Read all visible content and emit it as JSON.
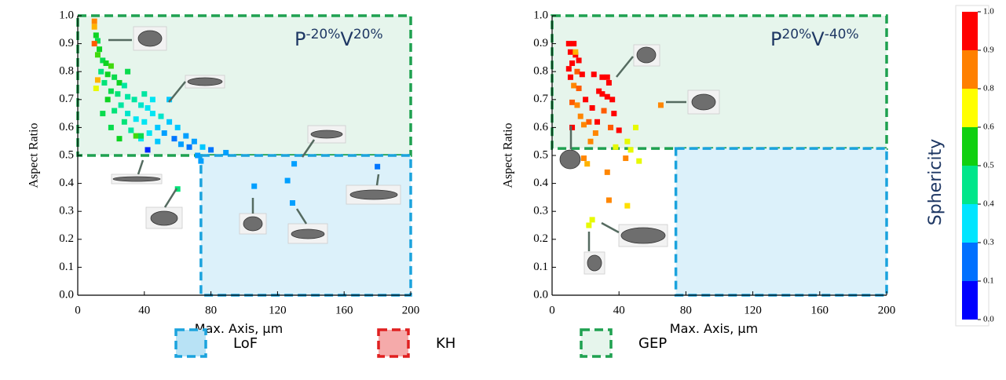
{
  "chart_data": [
    {
      "type": "scatter",
      "xlabel": "Max. Axis, µm",
      "ylabel": "Aspect Ratio",
      "annotation": [
        "P",
        "-20%",
        "V",
        "20%"
      ],
      "xlim": [
        0,
        200
      ],
      "ylim": [
        0,
        1
      ],
      "xticks": [
        0,
        40,
        80,
        120,
        160,
        200
      ],
      "yticks": [
        {
          "value": 0,
          "label": "0.0"
        },
        0.1,
        0.2,
        0.3,
        0.4,
        0.5,
        0.6,
        0.7,
        0.8,
        0.9,
        {
          "value": 1,
          "label": "1.0"
        }
      ],
      "regions": [
        {
          "xlim": [
            0,
            200
          ],
          "ylim": [
            0.5,
            1
          ],
          "fill": "#e6f5ec",
          "stroke": "#1fa150"
        },
        {
          "xlim": [
            74,
            200
          ],
          "ylim": [
            0,
            0.5
          ],
          "fill": "#dcf1fa",
          "stroke": "#1ba3dd"
        }
      ],
      "x": [
        10,
        10,
        11,
        12,
        10,
        13,
        12,
        15,
        17,
        20,
        14,
        18,
        22,
        12,
        16,
        25,
        28,
        11,
        20,
        24,
        30,
        34,
        18,
        26,
        38,
        42,
        22,
        30,
        45,
        50,
        15,
        35,
        40,
        55,
        28,
        48,
        60,
        20,
        32,
        43,
        52,
        65,
        25,
        38,
        58,
        70,
        48,
        62,
        67,
        75,
        42,
        80,
        89,
        72,
        74,
        60,
        106,
        126,
        130,
        129,
        180,
        35,
        30,
        45,
        55,
        40,
        38
      ],
      "y": [
        0.98,
        0.96,
        0.93,
        0.91,
        0.9,
        0.88,
        0.86,
        0.84,
        0.83,
        0.82,
        0.8,
        0.79,
        0.78,
        0.77,
        0.76,
        0.76,
        0.75,
        0.74,
        0.73,
        0.72,
        0.71,
        0.7,
        0.7,
        0.68,
        0.68,
        0.67,
        0.66,
        0.65,
        0.65,
        0.64,
        0.65,
        0.63,
        0.62,
        0.62,
        0.62,
        0.6,
        0.6,
        0.6,
        0.59,
        0.58,
        0.58,
        0.57,
        0.56,
        0.56,
        0.56,
        0.55,
        0.55,
        0.54,
        0.53,
        0.53,
        0.52,
        0.52,
        0.51,
        0.5,
        0.48,
        0.38,
        0.39,
        0.41,
        0.47,
        0.33,
        0.46,
        0.57,
        0.8,
        0.7,
        0.7,
        0.72,
        0.57
      ],
      "sphericity": [
        0.85,
        0.8,
        0.55,
        0.5,
        0.9,
        0.55,
        0.6,
        0.5,
        0.55,
        0.6,
        0.45,
        0.55,
        0.5,
        0.8,
        0.45,
        0.55,
        0.4,
        0.7,
        0.5,
        0.45,
        0.4,
        0.4,
        0.55,
        0.4,
        0.35,
        0.3,
        0.45,
        0.35,
        0.3,
        0.35,
        0.5,
        0.3,
        0.3,
        0.25,
        0.45,
        0.25,
        0.25,
        0.5,
        0.4,
        0.3,
        0.2,
        0.2,
        0.55,
        0.3,
        0.15,
        0.2,
        0.25,
        0.2,
        0.15,
        0.25,
        0.05,
        0.15,
        0.2,
        0.2,
        0.2,
        0.45,
        0.2,
        0.2,
        0.2,
        0.2,
        0.15,
        0.6,
        0.5,
        0.3,
        0.25,
        0.4,
        0.5
      ]
    },
    {
      "type": "scatter",
      "xlabel": "Max. Axis, µm",
      "ylabel": "Aspect Ratio",
      "annotation": [
        "P",
        "20%",
        "V",
        "-40%"
      ],
      "xlim": [
        0,
        200
      ],
      "ylim": [
        0,
        1
      ],
      "xticks": [
        0,
        40,
        80,
        120,
        160,
        200
      ],
      "yticks": [
        {
          "value": 0,
          "label": "0.0"
        },
        0.1,
        0.2,
        0.3,
        0.4,
        0.5,
        0.6,
        0.7,
        0.8,
        0.9,
        {
          "value": 1,
          "label": "1.0"
        }
      ],
      "regions": [
        {
          "xlim": [
            0,
            200
          ],
          "ylim": [
            0.525,
            1
          ],
          "fill": "#e6f5ec",
          "stroke": "#1fa150"
        },
        {
          "xlim": [
            74,
            200
          ],
          "ylim": [
            0,
            0.525
          ],
          "fill": "#dcf1fa",
          "stroke": "#1ba3dd"
        }
      ],
      "x": [
        10,
        13,
        11,
        14,
        16,
        12,
        10,
        15,
        18,
        11,
        25,
        30,
        33,
        34,
        13,
        16,
        28,
        30,
        33,
        36,
        20,
        12,
        15,
        24,
        31,
        37,
        17,
        22,
        27,
        19,
        12,
        35,
        40,
        26,
        50,
        45,
        23,
        38,
        47,
        19,
        21,
        44,
        52,
        33,
        34,
        45,
        24,
        22,
        65,
        14
      ],
      "y": [
        0.9,
        0.9,
        0.87,
        0.86,
        0.84,
        0.83,
        0.81,
        0.8,
        0.79,
        0.78,
        0.79,
        0.78,
        0.78,
        0.76,
        0.75,
        0.74,
        0.73,
        0.72,
        0.71,
        0.7,
        0.7,
        0.69,
        0.68,
        0.67,
        0.66,
        0.65,
        0.64,
        0.62,
        0.62,
        0.61,
        0.6,
        0.6,
        0.59,
        0.58,
        0.6,
        0.55,
        0.55,
        0.53,
        0.52,
        0.49,
        0.47,
        0.49,
        0.48,
        0.44,
        0.34,
        0.32,
        0.27,
        0.25,
        0.68,
        0.87
      ],
      "sphericity": [
        1,
        1,
        1,
        1,
        1,
        1,
        1,
        0.9,
        1,
        1,
        1,
        1,
        1,
        1,
        0.85,
        0.9,
        1,
        1,
        1,
        1,
        1,
        0.9,
        0.85,
        1,
        0.9,
        1,
        0.85,
        0.9,
        1,
        0.85,
        1,
        0.9,
        1,
        0.85,
        0.7,
        0.7,
        0.85,
        0.7,
        0.7,
        0.85,
        0.8,
        0.85,
        0.7,
        0.85,
        0.85,
        0.75,
        0.7,
        0.7,
        0.85,
        0.8
      ]
    }
  ],
  "colorbar": {
    "label": "Sphericity",
    "ticks": [
      {
        "value": 0,
        "label": "0.0"
      },
      0.1,
      0.3,
      0.4,
      0.5,
      0.6,
      0.8,
      0.9,
      {
        "value": 1,
        "label": "1.0"
      }
    ],
    "colormap": [
      "#0000ff",
      "#0070ff",
      "#00e5ff",
      "#00e68a",
      "#10d010",
      "#ffff00",
      "#ff8000",
      "#ff0000"
    ]
  },
  "legend": [
    {
      "name": "LoF",
      "fill": "#b8e2f5",
      "stroke": "#1ba3dd"
    },
    {
      "name": "KH",
      "fill": "#f5aaaa",
      "stroke": "#e02020"
    },
    {
      "name": "GEP",
      "fill": "#e6f5ec",
      "stroke": "#1fa150"
    }
  ]
}
